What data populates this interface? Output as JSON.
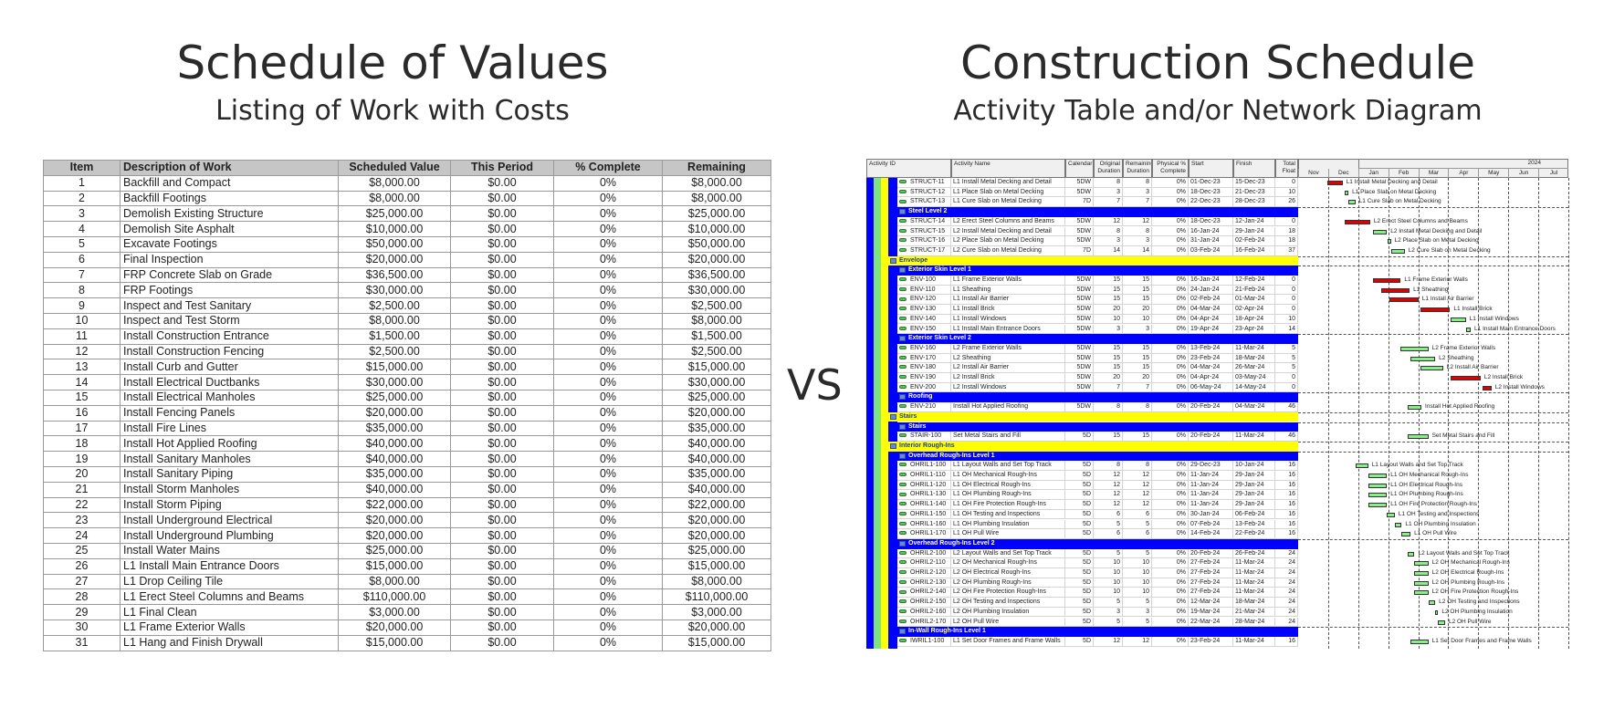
{
  "left": {
    "title": "Schedule of Values",
    "subtitle": "Listing of Work with Costs",
    "columns": [
      "Item",
      "Description of Work",
      "Scheduled Value",
      "This Period",
      "% Complete",
      "Remaining"
    ],
    "rows": [
      [
        "1",
        "Backfill and Compact",
        "$8,000.00",
        "$0.00",
        "0%",
        "$8,000.00"
      ],
      [
        "2",
        "Backfill Footings",
        "$8,000.00",
        "$0.00",
        "0%",
        "$8,000.00"
      ],
      [
        "3",
        "Demolish Existing Structure",
        "$25,000.00",
        "$0.00",
        "0%",
        "$25,000.00"
      ],
      [
        "4",
        "Demolish Site Asphalt",
        "$10,000.00",
        "$0.00",
        "0%",
        "$10,000.00"
      ],
      [
        "5",
        "Excavate Footings",
        "$50,000.00",
        "$0.00",
        "0%",
        "$50,000.00"
      ],
      [
        "6",
        "Final Inspection",
        "$20,000.00",
        "$0.00",
        "0%",
        "$20,000.00"
      ],
      [
        "7",
        "FRP Concrete Slab on Grade",
        "$36,500.00",
        "$0.00",
        "0%",
        "$36,500.00"
      ],
      [
        "8",
        "FRP Footings",
        "$30,000.00",
        "$0.00",
        "0%",
        "$30,000.00"
      ],
      [
        "9",
        "Inspect and Test Sanitary",
        "$2,500.00",
        "$0.00",
        "0%",
        "$2,500.00"
      ],
      [
        "10",
        "Inspect and Test Storm",
        "$8,000.00",
        "$0.00",
        "0%",
        "$8,000.00"
      ],
      [
        "11",
        "Install Construction Entrance",
        "$1,500.00",
        "$0.00",
        "0%",
        "$1,500.00"
      ],
      [
        "12",
        "Install Construction Fencing",
        "$2,500.00",
        "$0.00",
        "0%",
        "$2,500.00"
      ],
      [
        "13",
        "Install Curb and Gutter",
        "$15,000.00",
        "$0.00",
        "0%",
        "$15,000.00"
      ],
      [
        "14",
        "Install Electrical Ductbanks",
        "$30,000.00",
        "$0.00",
        "0%",
        "$30,000.00"
      ],
      [
        "15",
        "Install Electrical Manholes",
        "$25,000.00",
        "$0.00",
        "0%",
        "$25,000.00"
      ],
      [
        "16",
        "Install Fencing Panels",
        "$20,000.00",
        "$0.00",
        "0%",
        "$20,000.00"
      ],
      [
        "17",
        "Install Fire Lines",
        "$35,000.00",
        "$0.00",
        "0%",
        "$35,000.00"
      ],
      [
        "18",
        "Install Hot Applied Roofing",
        "$40,000.00",
        "$0.00",
        "0%",
        "$40,000.00"
      ],
      [
        "19",
        "Install Sanitary Manholes",
        "$40,000.00",
        "$0.00",
        "0%",
        "$40,000.00"
      ],
      [
        "20",
        "Install Sanitary Piping",
        "$35,000.00",
        "$0.00",
        "0%",
        "$35,000.00"
      ],
      [
        "21",
        "Install Storm Manholes",
        "$40,000.00",
        "$0.00",
        "0%",
        "$40,000.00"
      ],
      [
        "22",
        "Install Storm Piping",
        "$22,000.00",
        "$0.00",
        "0%",
        "$22,000.00"
      ],
      [
        "23",
        "Install Underground Electrical",
        "$20,000.00",
        "$0.00",
        "0%",
        "$20,000.00"
      ],
      [
        "24",
        "Install Underground Plumbing",
        "$20,000.00",
        "$0.00",
        "0%",
        "$20,000.00"
      ],
      [
        "25",
        "Install Water Mains",
        "$25,000.00",
        "$0.00",
        "0%",
        "$25,000.00"
      ],
      [
        "26",
        "L1  Install Main Entrance Doors",
        "$15,000.00",
        "$0.00",
        "0%",
        "$15,000.00"
      ],
      [
        "27",
        "L1 Drop Ceiling Tile",
        "$8,000.00",
        "$0.00",
        "0%",
        "$8,000.00"
      ],
      [
        "28",
        "L1 Erect Steel Columns and Beams",
        "$110,000.00",
        "$0.00",
        "0%",
        "$110,000.00"
      ],
      [
        "29",
        "L1 Final Clean",
        "$3,000.00",
        "$0.00",
        "0%",
        "$3,000.00"
      ],
      [
        "30",
        "L1 Frame Exterior Walls",
        "$20,000.00",
        "$0.00",
        "0%",
        "$20,000.00"
      ],
      [
        "31",
        "L1 Hang and Finish Drywall",
        "$15,000.00",
        "$0.00",
        "0%",
        "$15,000.00"
      ]
    ]
  },
  "vs": "VS",
  "right": {
    "title": "Construction Schedule",
    "subtitle": "Activity Table and/or Network Diagram",
    "columns": [
      "Activity ID",
      "Activity Name",
      "Calendar",
      "Original Duration",
      "Remaining Duration",
      "Physical % Complete",
      "Start",
      "Finish",
      "Total Float"
    ],
    "timeline": {
      "year": "2024",
      "months": [
        "Nov",
        "Dec",
        "Jan",
        "Feb",
        "Mar",
        "Apr",
        "May",
        "Jun",
        "Jul"
      ]
    },
    "colors": {
      "critical": "#e00000",
      "noncritical": "#88ee88",
      "wbs_level2": "#ffff00",
      "wbs_level3": "#0000ff",
      "stripe_green": "#7ee27e"
    },
    "rows": [
      {
        "id": "STRUCT-11",
        "name": "L1 Install Metal Decking and Detail",
        "cal": "5DW",
        "od": "8",
        "rd": "8",
        "pc": "0%",
        "start": "01-Dec-23",
        "finish": "15-Dec-23",
        "tf": "0"
      },
      {
        "id": "STRUCT-12",
        "name": "L1 Place Slab on Metal Decking",
        "cal": "5DW",
        "od": "3",
        "rd": "3",
        "pc": "0%",
        "start": "18-Dec-23",
        "finish": "21-Dec-23",
        "tf": "10"
      },
      {
        "id": "STRUCT-13",
        "name": "L1 Cure Slab on Metal Decking",
        "cal": "7D",
        "od": "7",
        "rd": "7",
        "pc": "0%",
        "start": "22-Dec-23",
        "finish": "28-Dec-23",
        "tf": "26"
      },
      {
        "band": "Steel Level 2",
        "level": 3
      },
      {
        "id": "STRUCT-14",
        "name": "L2 Erect Steel Columns and Beams",
        "cal": "5DW",
        "od": "12",
        "rd": "12",
        "pc": "0%",
        "start": "18-Dec-23",
        "finish": "12-Jan-24",
        "tf": "0"
      },
      {
        "id": "STRUCT-15",
        "name": "L2 Install Metal Decking and Detail",
        "cal": "5DW",
        "od": "8",
        "rd": "8",
        "pc": "0%",
        "start": "16-Jan-24",
        "finish": "29-Jan-24",
        "tf": "18"
      },
      {
        "id": "STRUCT-16",
        "name": "L2 Place Slab on Metal Decking",
        "cal": "5DW",
        "od": "3",
        "rd": "3",
        "pc": "0%",
        "start": "31-Jan-24",
        "finish": "02-Feb-24",
        "tf": "18"
      },
      {
        "id": "STRUCT-17",
        "name": "L2 Cure Slab on Metal Decking",
        "cal": "7D",
        "od": "14",
        "rd": "14",
        "pc": "0%",
        "start": "03-Feb-24",
        "finish": "16-Feb-24",
        "tf": "37"
      },
      {
        "band": "Envelope",
        "level": 2
      },
      {
        "band": "Exterior Skin Level 1",
        "level": 3
      },
      {
        "id": "ENV-100",
        "name": "L1 Frame Exterior Walls",
        "cal": "5DW",
        "od": "15",
        "rd": "15",
        "pc": "0%",
        "start": "16-Jan-24",
        "finish": "12-Feb-24",
        "tf": "0"
      },
      {
        "id": "ENV-110",
        "name": "L1 Sheathing",
        "cal": "5DW",
        "od": "15",
        "rd": "15",
        "pc": "0%",
        "start": "24-Jan-24",
        "finish": "21-Feb-24",
        "tf": "0"
      },
      {
        "id": "ENV-120",
        "name": "L1 Install Air Barrier",
        "cal": "5DW",
        "od": "15",
        "rd": "15",
        "pc": "0%",
        "start": "02-Feb-24",
        "finish": "01-Mar-24",
        "tf": "0"
      },
      {
        "id": "ENV-130",
        "name": "L1 Install Brick",
        "cal": "5DW",
        "od": "20",
        "rd": "20",
        "pc": "0%",
        "start": "04-Mar-24",
        "finish": "02-Apr-24",
        "tf": "0"
      },
      {
        "id": "ENV-140",
        "name": "L1 Install Windows",
        "cal": "5DW",
        "od": "10",
        "rd": "10",
        "pc": "0%",
        "start": "04-Apr-24",
        "finish": "18-Apr-24",
        "tf": "10"
      },
      {
        "id": "ENV-150",
        "name": "L1  Install Main Entrance Doors",
        "cal": "5DW",
        "od": "3",
        "rd": "3",
        "pc": "0%",
        "start": "19-Apr-24",
        "finish": "23-Apr-24",
        "tf": "14"
      },
      {
        "band": "Exterior Skin Level 2",
        "level": 3
      },
      {
        "id": "ENV-160",
        "name": "L2 Frame Exterior Walls",
        "cal": "5DW",
        "od": "15",
        "rd": "15",
        "pc": "0%",
        "start": "13-Feb-24",
        "finish": "11-Mar-24",
        "tf": "5"
      },
      {
        "id": "ENV-170",
        "name": "L2 Sheathing",
        "cal": "5DW",
        "od": "15",
        "rd": "15",
        "pc": "0%",
        "start": "23-Feb-24",
        "finish": "18-Mar-24",
        "tf": "5"
      },
      {
        "id": "ENV-180",
        "name": "L2 Install Air Barrier",
        "cal": "5DW",
        "od": "15",
        "rd": "15",
        "pc": "0%",
        "start": "04-Mar-24",
        "finish": "26-Mar-24",
        "tf": "5"
      },
      {
        "id": "ENV-190",
        "name": "L2 Install Brick",
        "cal": "5DW",
        "od": "20",
        "rd": "20",
        "pc": "0%",
        "start": "04-Apr-24",
        "finish": "03-May-24",
        "tf": "0"
      },
      {
        "id": "ENV-200",
        "name": "L2 Install Windows",
        "cal": "5DW",
        "od": "7",
        "rd": "7",
        "pc": "0%",
        "start": "06-May-24",
        "finish": "14-May-24",
        "tf": "0"
      },
      {
        "band": "Roofing",
        "level": 3
      },
      {
        "id": "ENV-210",
        "name": "Install Hot Applied Roofing",
        "cal": "5DW",
        "od": "8",
        "rd": "8",
        "pc": "0%",
        "start": "20-Feb-24",
        "finish": "04-Mar-24",
        "tf": "46"
      },
      {
        "band": "Stairs",
        "level": 2
      },
      {
        "band": "Stairs",
        "level": 3
      },
      {
        "id": "STAIR-100",
        "name": "Set Metal Stairs and Fill",
        "cal": "5D",
        "od": "15",
        "rd": "15",
        "pc": "0%",
        "start": "20-Feb-24",
        "finish": "11-Mar-24",
        "tf": "46"
      },
      {
        "band": "Interior Rough-Ins",
        "level": 2
      },
      {
        "band": "Overhead Rough-Ins Level 1",
        "level": 3
      },
      {
        "id": "OHRIL1-100",
        "name": "L1 Layout Walls and Set Top Track",
        "cal": "5D",
        "od": "8",
        "rd": "8",
        "pc": "0%",
        "start": "29-Dec-23",
        "finish": "10-Jan-24",
        "tf": "16"
      },
      {
        "id": "OHRIL1-110",
        "name": "L1 OH Mechanical Rough-Ins",
        "cal": "5D",
        "od": "12",
        "rd": "12",
        "pc": "0%",
        "start": "11-Jan-24",
        "finish": "29-Jan-24",
        "tf": "16"
      },
      {
        "id": "OHRIL1-120",
        "name": "L1 OH Electrical Rough-Ins",
        "cal": "5D",
        "od": "12",
        "rd": "12",
        "pc": "0%",
        "start": "11-Jan-24",
        "finish": "29-Jan-24",
        "tf": "16"
      },
      {
        "id": "OHRIL1-130",
        "name": "L1 OH Plumbing Rough-Ins",
        "cal": "5D",
        "od": "12",
        "rd": "12",
        "pc": "0%",
        "start": "11-Jan-24",
        "finish": "29-Jan-24",
        "tf": "16"
      },
      {
        "id": "OHRIL1-140",
        "name": "L1 OH Fire Protection Rough-Ins",
        "cal": "5D",
        "od": "12",
        "rd": "12",
        "pc": "0%",
        "start": "11-Jan-24",
        "finish": "29-Jan-24",
        "tf": "16"
      },
      {
        "id": "OHRIL1-150",
        "name": "L1 OH Testing and Inspections",
        "cal": "5D",
        "od": "6",
        "rd": "6",
        "pc": "0%",
        "start": "30-Jan-24",
        "finish": "06-Feb-24",
        "tf": "16"
      },
      {
        "id": "OHRIL1-160",
        "name": "L1 OH Plumbing Insulation",
        "cal": "5D",
        "od": "5",
        "rd": "5",
        "pc": "0%",
        "start": "07-Feb-24",
        "finish": "13-Feb-24",
        "tf": "16"
      },
      {
        "id": "OHRIL1-170",
        "name": "L1 OH Pull Wire",
        "cal": "5D",
        "od": "6",
        "rd": "6",
        "pc": "0%",
        "start": "14-Feb-24",
        "finish": "22-Feb-24",
        "tf": "16"
      },
      {
        "band": "Overhead Rough-Ins Level 2",
        "level": 3
      },
      {
        "id": "OHRIL2-100",
        "name": "L2 Layout Walls and Set Top Track",
        "cal": "5D",
        "od": "5",
        "rd": "5",
        "pc": "0%",
        "start": "20-Feb-24",
        "finish": "26-Feb-24",
        "tf": "24"
      },
      {
        "id": "OHRIL2-110",
        "name": "L2 OH Mechanical Rough-Ins",
        "cal": "5D",
        "od": "10",
        "rd": "10",
        "pc": "0%",
        "start": "27-Feb-24",
        "finish": "11-Mar-24",
        "tf": "24"
      },
      {
        "id": "OHRIL2-120",
        "name": "L2 OH Electrical Rough-Ins",
        "cal": "5D",
        "od": "10",
        "rd": "10",
        "pc": "0%",
        "start": "27-Feb-24",
        "finish": "11-Mar-24",
        "tf": "24"
      },
      {
        "id": "OHRIL2-130",
        "name": "L2 OH Plumbing Rough-Ins",
        "cal": "5D",
        "od": "10",
        "rd": "10",
        "pc": "0%",
        "start": "27-Feb-24",
        "finish": "11-Mar-24",
        "tf": "24"
      },
      {
        "id": "OHRIL2-140",
        "name": "L2 OH Fire Protection Rough-Ins",
        "cal": "5D",
        "od": "10",
        "rd": "10",
        "pc": "0%",
        "start": "27-Feb-24",
        "finish": "11-Mar-24",
        "tf": "24"
      },
      {
        "id": "OHRIL2-150",
        "name": "L2 OH Testing and Inspections",
        "cal": "5D",
        "od": "5",
        "rd": "5",
        "pc": "0%",
        "start": "12-Mar-24",
        "finish": "18-Mar-24",
        "tf": "24"
      },
      {
        "id": "OHRIL2-160",
        "name": "L2 OH Plumbing Insulation",
        "cal": "5D",
        "od": "3",
        "rd": "3",
        "pc": "0%",
        "start": "19-Mar-24",
        "finish": "21-Mar-24",
        "tf": "24"
      },
      {
        "id": "OHRIL2-170",
        "name": "L2 OH Pull Wire",
        "cal": "5D",
        "od": "5",
        "rd": "5",
        "pc": "0%",
        "start": "22-Mar-24",
        "finish": "28-Mar-24",
        "tf": "24"
      },
      {
        "band": "In-Wall Rough-Ins Level 1",
        "level": 3
      },
      {
        "id": "IWRIL1-100",
        "name": "L1 Set Door Frames and Frame Walls",
        "cal": "5D",
        "od": "12",
        "rd": "12",
        "pc": "0%",
        "start": "23-Feb-24",
        "finish": "11-Mar-24",
        "tf": "16"
      }
    ]
  }
}
